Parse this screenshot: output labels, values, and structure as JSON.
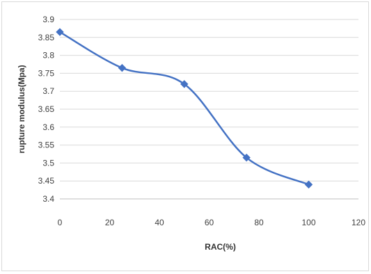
{
  "chart_data": {
    "type": "line",
    "title": "",
    "xlabel": "RAC(%)",
    "ylabel": "rupture modulus(Mpa)",
    "xlim": [
      0,
      120
    ],
    "ylim": [
      3.4,
      3.9
    ],
    "xticks": [
      "0",
      "20",
      "40",
      "60",
      "80",
      "100",
      "120"
    ],
    "yticks": [
      "3.4",
      "3.45",
      "3.5",
      "3.55",
      "3.6",
      "3.65",
      "3.7",
      "3.75",
      "3.8",
      "3.85",
      "3.9"
    ],
    "grid": "horizontal",
    "legend": "none",
    "series": [
      {
        "x": [
          0,
          25,
          50,
          75,
          100
        ],
        "y": [
          3.865,
          3.765,
          3.72,
          3.515,
          3.44
        ],
        "color": "#4472c4",
        "marker": "diamond",
        "smooth": true
      }
    ]
  }
}
